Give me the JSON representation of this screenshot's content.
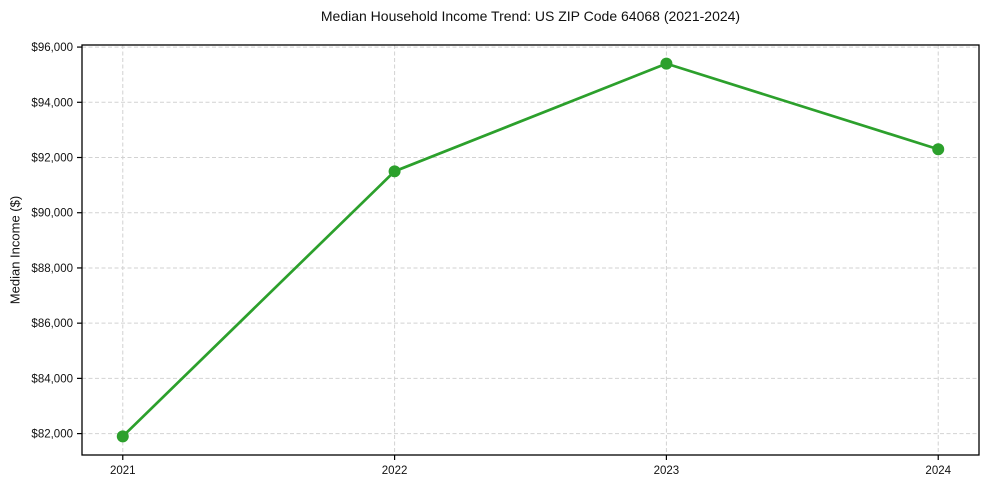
{
  "title": "Median Household Income Trend: US ZIP Code 64068 (2021-2024)",
  "colors": {
    "line": "#2ca02c",
    "marker": "#2ca02c",
    "grid": "#d2d2d2",
    "spine": "#000000",
    "text": "#111111",
    "background": "#ffffff"
  },
  "chart_data": {
    "type": "line",
    "title": "Median Household Income Trend: US ZIP Code 64068 (2021-2024)",
    "xlabel": "",
    "ylabel": "Median Income ($)",
    "x": [
      2021,
      2022,
      2023,
      2024
    ],
    "categories": [
      "2021",
      "2022",
      "2023",
      "2024"
    ],
    "values": [
      81900,
      91500,
      95400,
      92300
    ],
    "xlim": [
      2020.85,
      2024.15
    ],
    "ylim": [
      81225,
      96075
    ],
    "xticks": [
      2021,
      2022,
      2023,
      2024
    ],
    "xtick_labels": [
      "2021",
      "2022",
      "2023",
      "2024"
    ],
    "yticks": [
      82000,
      84000,
      86000,
      88000,
      90000,
      92000,
      94000,
      96000
    ],
    "ytick_labels": [
      "$82,000",
      "$84,000",
      "$86,000",
      "$88,000",
      "$90,000",
      "$92,000",
      "$94,000",
      "$96,000"
    ],
    "grid": true,
    "grid_style": "dashed",
    "legend": false,
    "marker": "circle"
  }
}
